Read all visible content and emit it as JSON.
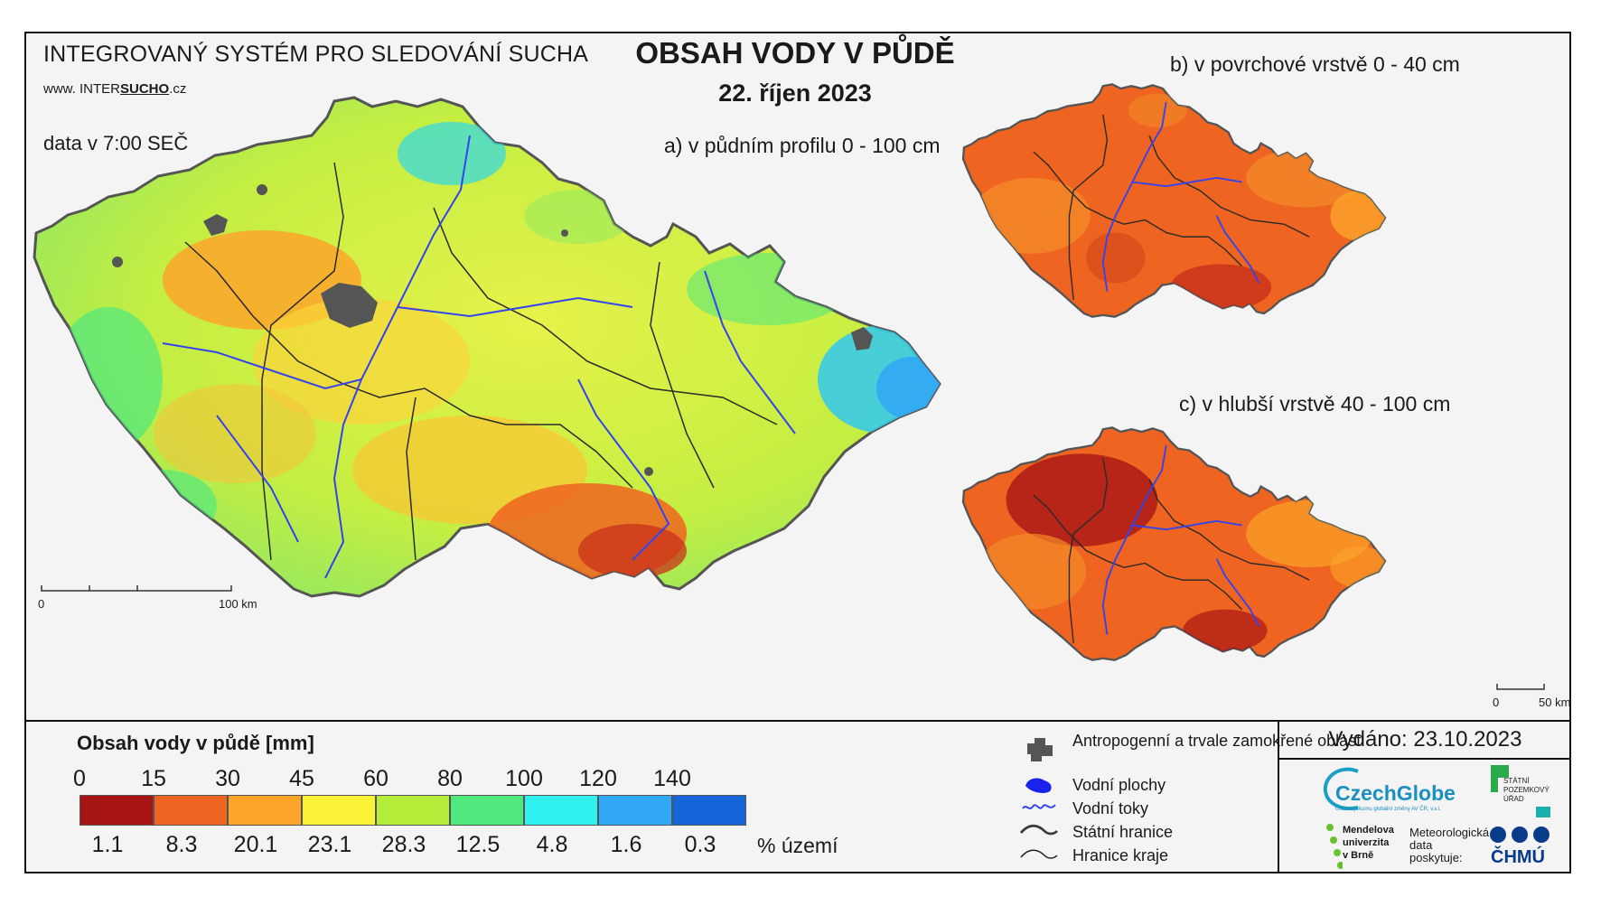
{
  "header": {
    "system_title": "INTEGROVANÝ SYSTÉM PRO SLEDOVÁNÍ SUCHA",
    "url_prefix": "www. INTER",
    "url_highlight": "SUCHO",
    "url_suffix": ".cz",
    "data_time": "data v 7:00 SEČ",
    "main_title": "OBSAH VODY V PŮDĚ",
    "date": "22. říjen 2023"
  },
  "maps": {
    "a_label": "a) v půdním profilu 0 - 100 cm",
    "b_label": "b) v povrchové vrstvě 0 - 40 cm",
    "c_label": "c) v hlubší vrstvě 40 - 100 cm",
    "scale_main": {
      "start": "0",
      "end": "100 km"
    },
    "scale_small": {
      "start": "0",
      "end": "50 km"
    }
  },
  "legend": {
    "title": "Obsah vody v půdě  [mm]",
    "ticks": [
      "0",
      "15",
      "30",
      "45",
      "60",
      "80",
      "100",
      "120",
      "140"
    ],
    "bins": [
      {
        "color": "#a81515",
        "percent": "1.1"
      },
      {
        "color": "#ee6420",
        "percent": "8.3"
      },
      {
        "color": "#fba42a",
        "percent": "20.1"
      },
      {
        "color": "#fbf237",
        "percent": "23.1"
      },
      {
        "color": "#b4ee3a",
        "percent": "28.3"
      },
      {
        "color": "#4fe87f",
        "percent": "12.5"
      },
      {
        "color": "#30f0f0",
        "percent": "4.8"
      },
      {
        "color": "#31a8f5",
        "percent": "1.6"
      },
      {
        "color": "#1565d8",
        "percent": "0.3"
      }
    ],
    "percent_unit": "% území"
  },
  "symbols": {
    "urban": "Antropogenní a trvale zamokřené oblasti",
    "water_bodies": "Vodní plochy",
    "rivers": "Vodní toky",
    "state_border": "Státní hranice",
    "region_border": "Hranice kraje"
  },
  "footer": {
    "issued": "Vydáno: 23.10.2023",
    "czechglobe": "CzechGlobe",
    "czechglobe_sub": "Ústav výzkumu globální změny AV ČR, v.v.i.",
    "spu": "STÁTNÍ POZEMKOVÝ ÚŘAD",
    "mendelu": "Mendelova univerzita v Brně",
    "meteo": "Meteorologická data poskytuje:",
    "chmu": "ČHMÚ"
  },
  "colors": {
    "river": "#3344ee",
    "urban": "#555555",
    "border": "#222222"
  }
}
